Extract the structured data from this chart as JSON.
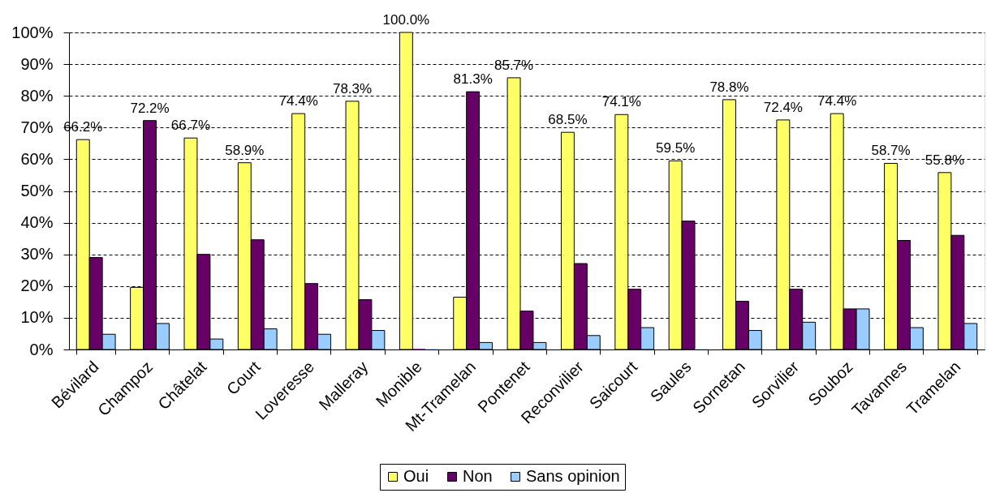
{
  "chart_data": {
    "type": "bar",
    "categories": [
      "Bévilard",
      "Champoz",
      "Châtelat",
      "Court",
      "Loveresse",
      "Malleray",
      "Monible",
      "Mt-Tramelan",
      "Pontenet",
      "Reconvilier",
      "Saicourt",
      "Saules",
      "Sornetan",
      "Sorvilier",
      "Souboz",
      "Tavannes",
      "Tramelan"
    ],
    "series": [
      {
        "name": "Oui",
        "color": "#ffff66",
        "values": [
          66.2,
          19.6,
          66.7,
          58.9,
          74.4,
          78.3,
          100.0,
          16.5,
          85.7,
          68.5,
          74.1,
          59.5,
          78.8,
          72.4,
          74.4,
          58.7,
          55.8
        ],
        "value_labels": [
          "66.2%",
          null,
          "66.7%",
          "58.9%",
          "74.4%",
          "78.3%",
          "100.0%",
          null,
          "85.7%",
          "68.5%",
          "74.1%",
          "59.5%",
          "78.8%",
          "72.4%",
          "74.4%",
          "58.7%",
          "55.8%"
        ]
      },
      {
        "name": "Non",
        "color": "#660066",
        "values": [
          29.0,
          72.2,
          30.0,
          34.6,
          20.8,
          15.7,
          0,
          81.3,
          12.1,
          27.1,
          19.0,
          40.5,
          15.2,
          19.0,
          12.8,
          34.4,
          36.0
        ],
        "value_labels": [
          null,
          "72.2%",
          null,
          null,
          null,
          null,
          null,
          "81.3%",
          null,
          null,
          null,
          null,
          null,
          null,
          null,
          null,
          null
        ]
      },
      {
        "name": "Sans opinion",
        "color": "#99ccff",
        "values": [
          4.8,
          8.2,
          3.3,
          6.5,
          4.8,
          6.0,
          0,
          2.2,
          2.2,
          4.4,
          6.9,
          0,
          6.0,
          8.6,
          12.8,
          6.9,
          8.2
        ]
      }
    ],
    "ylim": [
      0,
      100
    ],
    "yticks": [
      {
        "value": 0,
        "label": "0%"
      },
      {
        "value": 10,
        "label": "10%"
      },
      {
        "value": 20,
        "label": "20%"
      },
      {
        "value": 30,
        "label": "30%"
      },
      {
        "value": 40,
        "label": "40%"
      },
      {
        "value": 50,
        "label": "50%"
      },
      {
        "value": 60,
        "label": "60%"
      },
      {
        "value": 70,
        "label": "70%"
      },
      {
        "value": 80,
        "label": "80%"
      },
      {
        "value": 90,
        "label": "90%"
      },
      {
        "value": 100,
        "label": "100%"
      }
    ],
    "grid": "y",
    "legend": "bottom"
  }
}
